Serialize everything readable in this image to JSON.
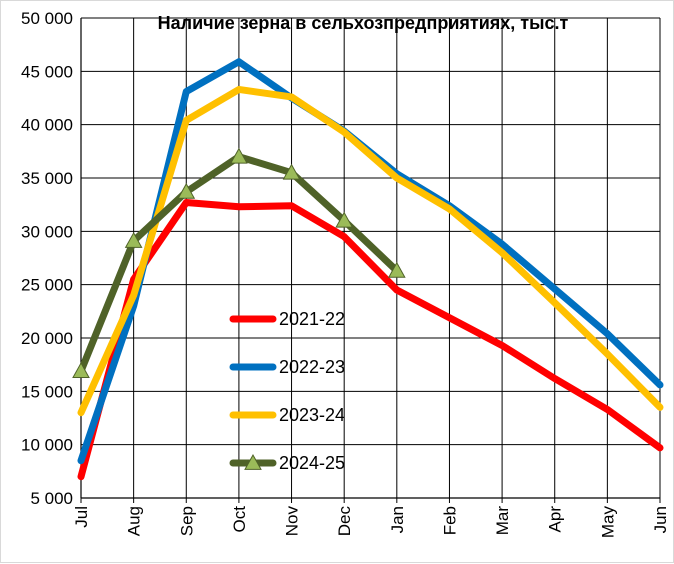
{
  "chart_data": {
    "type": "line",
    "title": "Наличие зерна в сельхозпредприятиях, тыс.т",
    "xlabel": "",
    "ylabel": "",
    "categories": [
      "Jul",
      "Aug",
      "Sep",
      "Oct",
      "Nov",
      "Dec",
      "Jan",
      "Feb",
      "Mar",
      "Apr",
      "May",
      "Jun"
    ],
    "y_tick_labels": [
      "5 000",
      "10 000",
      "15 000",
      "20 000",
      "25 000",
      "30 000",
      "35 000",
      "40 000",
      "45 000",
      "50 000"
    ],
    "y_ticks": [
      5000,
      10000,
      15000,
      20000,
      25000,
      30000,
      35000,
      40000,
      45000,
      50000
    ],
    "ylim": [
      5000,
      50000
    ],
    "grid": true,
    "legend_position": "center",
    "series": [
      {
        "name": "2021-22",
        "color": "#ff0000",
        "marker": "none",
        "values": [
          7000,
          25500,
          32700,
          32300,
          32400,
          29500,
          24500,
          21900,
          19300,
          16200,
          13300,
          9700
        ]
      },
      {
        "name": "2022-23",
        "color": "#0070c0",
        "marker": "none",
        "values": [
          8500,
          23000,
          43100,
          45900,
          42500,
          39400,
          35400,
          32400,
          28800,
          24600,
          20400,
          15600
        ]
      },
      {
        "name": "2023-24",
        "color": "#ffc000",
        "marker": "none",
        "values": [
          13000,
          24000,
          40400,
          43300,
          42600,
          39300,
          35000,
          32100,
          28000,
          23300,
          18500,
          13500
        ]
      },
      {
        "name": "2024-25",
        "color": "#4f6228",
        "marker": "triangle",
        "marker_color": "#9bbb59",
        "values": [
          16900,
          29100,
          33700,
          37000,
          35500,
          31000,
          26300,
          null,
          null,
          null,
          null,
          null
        ]
      }
    ]
  }
}
